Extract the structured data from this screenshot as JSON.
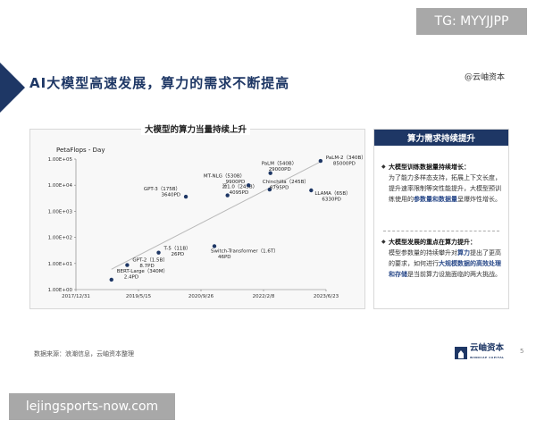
{
  "watermark_top": "TG: MYYJJPP",
  "watermark_bottom": "lejingsports-now.com",
  "slide_title": "AI大模型高速发展，算力的需求不断提高",
  "brand_top": "@云岫资本",
  "chart_data": {
    "type": "scatter",
    "title": "大模型的算力当量持续上升",
    "ylabel": "PetaFlops - Day",
    "xlabel": "",
    "y_scale": "log",
    "ylim": [
      1,
      100000
    ],
    "xlim": [
      "2017-12-31",
      "2023-06-23"
    ],
    "x_ticks": [
      "2017/12/31",
      "2019/5/15",
      "2020/9/26",
      "2022/2/8",
      "2023/6/23"
    ],
    "y_ticks": [
      "1.00E+00",
      "1.00E+01",
      "1.00E+02",
      "1.00E+03",
      "1.00E+04",
      "1.00E+05"
    ],
    "trendline": true,
    "points": [
      {
        "date": "2018-10-11",
        "value": 2.4,
        "label": "BERT-Large（340M）",
        "value_label": "2.4PD"
      },
      {
        "date": "2019-02-14",
        "value": 8.7,
        "label": "GPT-2（1.5B）",
        "value_label": "8.7PD"
      },
      {
        "date": "2019-10-23",
        "value": 26,
        "label": "T-5（11B）",
        "value_label": "26PD"
      },
      {
        "date": "2021-01-11",
        "value": 46,
        "label": "Switch-Transformer（1.6T）",
        "value_label": "46PD"
      },
      {
        "date": "2020-05-28",
        "value": 3640,
        "label": "GPT-3（175B）",
        "value_label": "3640PD"
      },
      {
        "date": "2021-04-26",
        "value": 4095,
        "label": "源1.0（245B）",
        "value_label": "4095PD"
      },
      {
        "date": "2021-10-11",
        "value": 9900,
        "label": "MT-NLG（530B）",
        "value_label": "9900PD"
      },
      {
        "date": "2022-03-29",
        "value": 6795,
        "label": "Chinchilla（245B）",
        "value_label": "6795PD"
      },
      {
        "date": "2022-04-04",
        "value": 29000,
        "label": "PaLM（540B）",
        "value_label": "29000PD"
      },
      {
        "date": "2023-02-24",
        "value": 6330,
        "label": "LLAMA（65B）",
        "value_label": "6330PD"
      },
      {
        "date": "2023-05-10",
        "value": 85000,
        "label": "PaLM-2（340B）",
        "value_label": "85000PD"
      }
    ]
  },
  "side_panel": {
    "header": "算力需求持续提升",
    "item1_head": "大模型训练数据量持续增长：",
    "item1_body_a": "为了能力多样态支持，拓展上下文长度，提升速率限制等突性能提升，大模型预训练使用的",
    "item1_body_hl": "参数量和数据量",
    "item1_body_b": "呈爆炸性增长。",
    "item2_head": "大模型发展的重点在算力提升：",
    "item2_body_a": "模型参数量的持续攀升对",
    "item2_body_hl1": "算力",
    "item2_body_b": "提出了更高的要求，如何进行",
    "item2_body_hl2": "大规模数据的高效处理和存储",
    "item2_body_c": "是当前算力设施面临的两大挑战。"
  },
  "source_note": "数据来源：浪潮信息，云岫资本整理",
  "logo_name": "云岫资本",
  "logo_sub": "WINDCAP CAPITAL",
  "page_number": "5",
  "colors": {
    "navy": "#1e3765",
    "dot": "#1e3765",
    "trend": "#b9b9b9"
  }
}
